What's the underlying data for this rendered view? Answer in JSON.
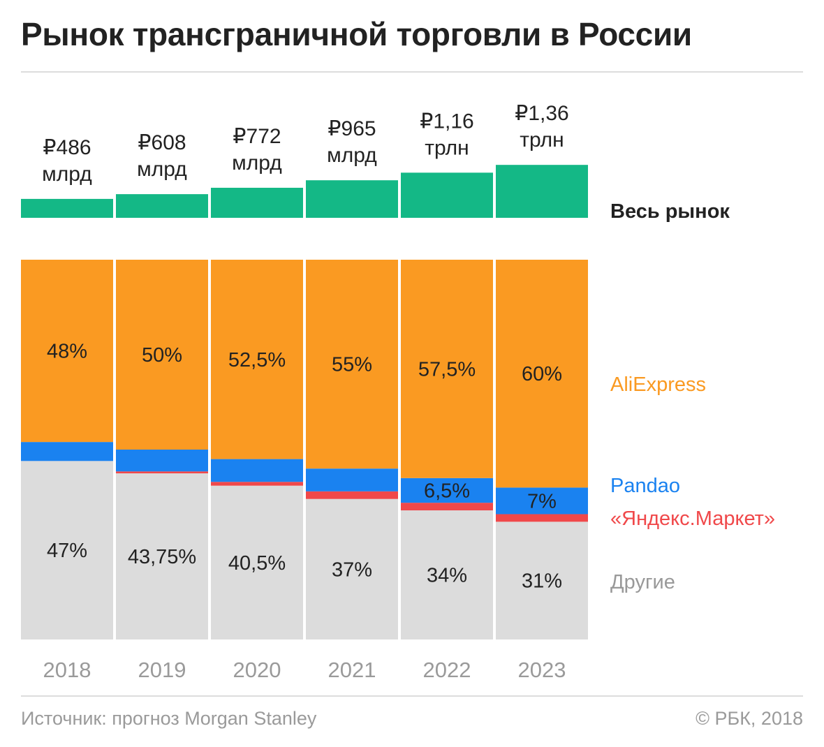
{
  "title": "Рынок трансграничной торговли в России",
  "footer": {
    "source": "Источник: прогноз Morgan Stanley",
    "copyright": "© РБК, 2018"
  },
  "chart_data": {
    "type": "bar",
    "title": "Рынок трансграничной торговли в России",
    "categories": [
      "2018",
      "2019",
      "2020",
      "2021",
      "2022",
      "2023"
    ],
    "total_market": {
      "name": "Весь рынок",
      "values_rub_bn": [
        486,
        608,
        772,
        965,
        1160,
        1360
      ],
      "labels": [
        [
          "₽486",
          "млрд"
        ],
        [
          "₽608",
          "млрд"
        ],
        [
          "₽772",
          "млрд"
        ],
        [
          "₽965",
          "млрд"
        ],
        [
          "₽1,16",
          "трлн"
        ],
        [
          "₽1,36",
          "трлн"
        ]
      ],
      "color": "#14b886"
    },
    "series": [
      {
        "name": "Другие",
        "values": [
          47,
          43.75,
          40.5,
          37,
          34,
          31
        ],
        "labels": [
          "47%",
          "43,75%",
          "40,5%",
          "37%",
          "34%",
          "31%"
        ],
        "color": "#dcdcdc",
        "legend_color": "#999999"
      },
      {
        "name": "«Яндекс.Маркет»",
        "values": [
          0,
          0.5,
          1,
          2,
          2,
          2
        ],
        "labels": [
          "",
          "",
          "",
          "",
          "",
          ""
        ],
        "color": "#f0484a",
        "legend_color": "#f0484a"
      },
      {
        "name": "Pandao",
        "values": [
          5,
          5.75,
          6,
          6,
          6.5,
          7
        ],
        "labels": [
          "",
          "",
          "",
          "",
          "6,5%",
          "7%"
        ],
        "color": "#1a82f0",
        "legend_color": "#1a82f0"
      },
      {
        "name": "AliExpress",
        "values": [
          48,
          50,
          52.5,
          55,
          57.5,
          60
        ],
        "labels": [
          "48%",
          "50%",
          "52,5%",
          "55%",
          "57,5%",
          "60%"
        ],
        "color": "#fa9a22",
        "legend_color": "#fa9a22"
      }
    ],
    "ylim": [
      0,
      100
    ],
    "unit": "%",
    "grid": false
  }
}
